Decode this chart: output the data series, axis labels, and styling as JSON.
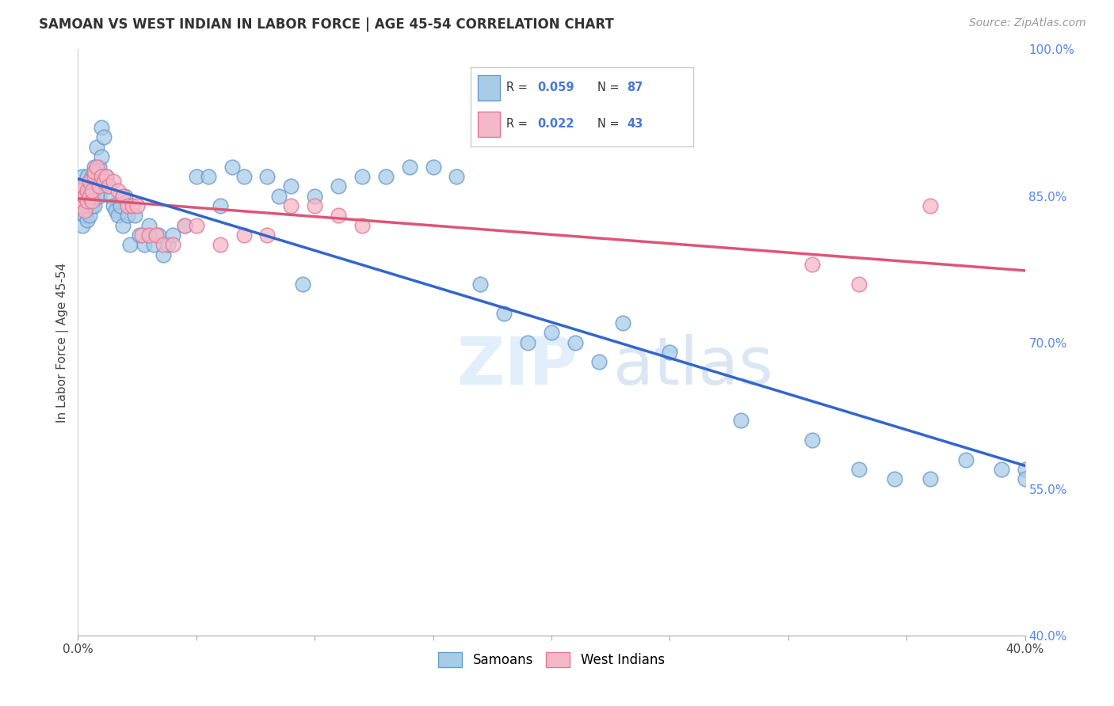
{
  "title": "SAMOAN VS WEST INDIAN IN LABOR FORCE | AGE 45-54 CORRELATION CHART",
  "source": "Source: ZipAtlas.com",
  "ylabel": "In Labor Force | Age 45-54",
  "xmin": 0.0,
  "xmax": 0.4,
  "ymin": 0.4,
  "ymax": 1.0,
  "yticks_right": [
    1.0,
    0.85,
    0.7,
    0.55,
    0.4
  ],
  "ytick_labels_right": [
    "100.0%",
    "85.0%",
    "70.0%",
    "55.0%",
    "40.0%"
  ],
  "samoan_color": "#a8cce8",
  "westindian_color": "#f4b8c8",
  "samoan_edge": "#6699cc",
  "westindian_edge": "#e07898",
  "trend_samoan_color": "#3366cc",
  "trend_westindian_color": "#dd5577",
  "legend_R_samoan": "0.059",
  "legend_N_samoan": "87",
  "legend_R_westindian": "0.022",
  "legend_N_westindian": "43",
  "background_color": "#ffffff",
  "grid_color": "#cccccc",
  "watermark_zip": "ZIP",
  "watermark_atlas": "atlas",
  "samoan_x": [
    0.001,
    0.001,
    0.002,
    0.002,
    0.002,
    0.003,
    0.003,
    0.003,
    0.003,
    0.004,
    0.004,
    0.004,
    0.004,
    0.004,
    0.005,
    0.005,
    0.005,
    0.005,
    0.006,
    0.006,
    0.006,
    0.006,
    0.007,
    0.007,
    0.007,
    0.008,
    0.008,
    0.008,
    0.009,
    0.009,
    0.01,
    0.01,
    0.011,
    0.012,
    0.013,
    0.014,
    0.015,
    0.016,
    0.017,
    0.018,
    0.019,
    0.02,
    0.021,
    0.022,
    0.024,
    0.026,
    0.028,
    0.03,
    0.032,
    0.034,
    0.036,
    0.038,
    0.04,
    0.045,
    0.05,
    0.055,
    0.06,
    0.065,
    0.07,
    0.08,
    0.085,
    0.09,
    0.095,
    0.1,
    0.11,
    0.12,
    0.13,
    0.14,
    0.15,
    0.16,
    0.17,
    0.18,
    0.19,
    0.2,
    0.21,
    0.22,
    0.23,
    0.25,
    0.28,
    0.31,
    0.33,
    0.345,
    0.36,
    0.375,
    0.39,
    0.4,
    0.4
  ],
  "samoan_y": [
    0.84,
    0.86,
    0.82,
    0.85,
    0.87,
    0.83,
    0.845,
    0.86,
    0.84,
    0.855,
    0.84,
    0.825,
    0.87,
    0.85,
    0.865,
    0.845,
    0.83,
    0.855,
    0.86,
    0.84,
    0.87,
    0.85,
    0.88,
    0.86,
    0.84,
    0.87,
    0.85,
    0.9,
    0.88,
    0.85,
    0.92,
    0.89,
    0.91,
    0.87,
    0.86,
    0.85,
    0.84,
    0.835,
    0.83,
    0.84,
    0.82,
    0.85,
    0.83,
    0.8,
    0.83,
    0.81,
    0.8,
    0.82,
    0.8,
    0.81,
    0.79,
    0.8,
    0.81,
    0.82,
    0.87,
    0.87,
    0.84,
    0.88,
    0.87,
    0.87,
    0.85,
    0.86,
    0.76,
    0.85,
    0.86,
    0.87,
    0.87,
    0.88,
    0.88,
    0.87,
    0.76,
    0.73,
    0.7,
    0.71,
    0.7,
    0.68,
    0.72,
    0.69,
    0.62,
    0.6,
    0.57,
    0.56,
    0.56,
    0.58,
    0.57,
    0.57,
    0.56
  ],
  "westindian_x": [
    0.001,
    0.001,
    0.002,
    0.002,
    0.003,
    0.003,
    0.004,
    0.004,
    0.005,
    0.005,
    0.006,
    0.006,
    0.007,
    0.007,
    0.008,
    0.009,
    0.01,
    0.011,
    0.012,
    0.013,
    0.015,
    0.017,
    0.019,
    0.021,
    0.023,
    0.025,
    0.027,
    0.03,
    0.033,
    0.036,
    0.04,
    0.045,
    0.05,
    0.06,
    0.07,
    0.08,
    0.09,
    0.1,
    0.11,
    0.12,
    0.31,
    0.33,
    0.36
  ],
  "westindian_y": [
    0.845,
    0.855,
    0.84,
    0.86,
    0.835,
    0.85,
    0.845,
    0.855,
    0.85,
    0.865,
    0.845,
    0.855,
    0.87,
    0.875,
    0.88,
    0.86,
    0.87,
    0.865,
    0.87,
    0.86,
    0.865,
    0.855,
    0.85,
    0.84,
    0.84,
    0.84,
    0.81,
    0.81,
    0.81,
    0.8,
    0.8,
    0.82,
    0.82,
    0.8,
    0.81,
    0.81,
    0.84,
    0.84,
    0.83,
    0.82,
    0.78,
    0.76,
    0.84
  ]
}
